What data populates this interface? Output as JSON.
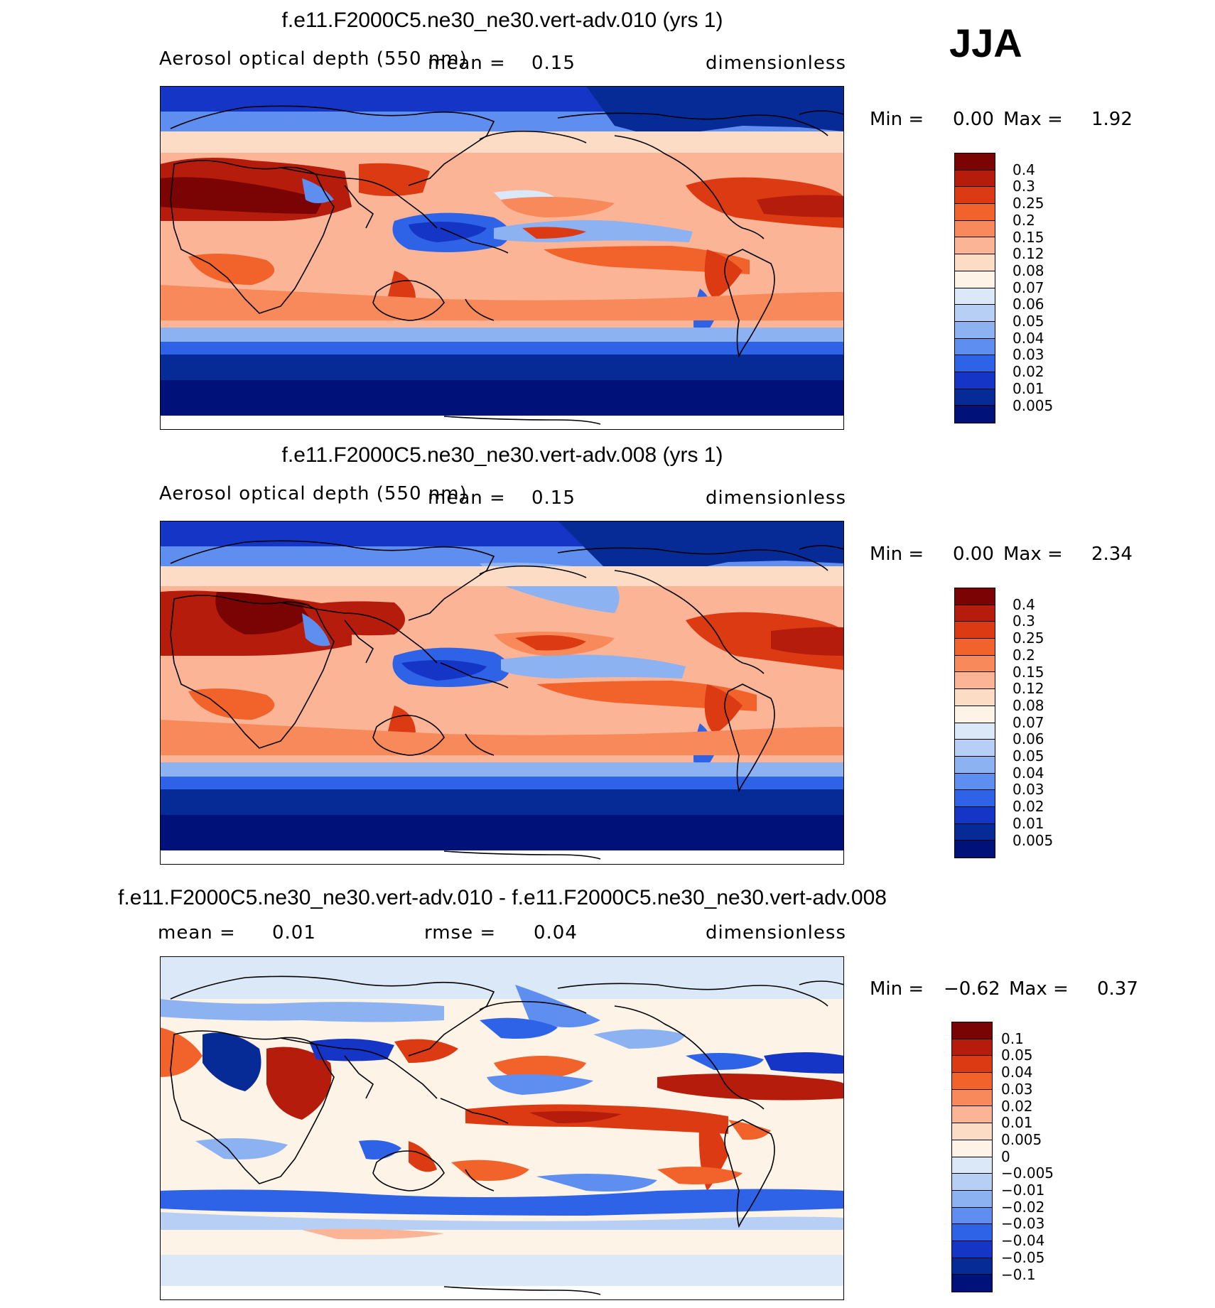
{
  "season": "JJA",
  "panels": [
    {
      "title": "f.e11.F2000C5.ne30_ne30.vert-adv.010 (yrs 1)",
      "left_label": "Aerosol optical depth (550 nm)",
      "mid_label": "mean =",
      "mid_value": "0.15",
      "units": "dimensionless",
      "min_label": "Min =",
      "min_value": "0.00",
      "max_label": "Max =",
      "max_value": "1.92",
      "levels": [
        "0.4",
        "0.3",
        "0.25",
        "0.2",
        "0.15",
        "0.12",
        "0.08",
        "0.07",
        "0.06",
        "0.05",
        "0.04",
        "0.03",
        "0.02",
        "0.01",
        "0.005"
      ]
    },
    {
      "title": "f.e11.F2000C5.ne30_ne30.vert-adv.008 (yrs 1)",
      "left_label": "Aerosol optical depth (550 nm)",
      "mid_label": "mean =",
      "mid_value": "0.15",
      "units": "dimensionless",
      "min_label": "Min =",
      "min_value": "0.00",
      "max_label": "Max =",
      "max_value": "2.34",
      "levels": [
        "0.4",
        "0.3",
        "0.25",
        "0.2",
        "0.15",
        "0.12",
        "0.08",
        "0.07",
        "0.06",
        "0.05",
        "0.04",
        "0.03",
        "0.02",
        "0.01",
        "0.005"
      ]
    },
    {
      "title": "f.e11.F2000C5.ne30_ne30.vert-adv.010 - f.e11.F2000C5.ne30_ne30.vert-adv.008",
      "left_label": "mean =",
      "left_value": "0.01",
      "mid_label": "rmse =",
      "mid_value": "0.04",
      "units": "dimensionless",
      "min_label": "Min =",
      "min_value": "−0.62",
      "max_label": "Max =",
      "max_value": "0.37",
      "levels": [
        "0.1",
        "0.05",
        "0.04",
        "0.03",
        "0.02",
        "0.01",
        "0.005",
        "0",
        "−0.005",
        "−0.01",
        "−0.02",
        "−0.03",
        "−0.04",
        "−0.05",
        "−0.1"
      ]
    }
  ],
  "colors": {
    "abs_scale": [
      "#7a0403",
      "#b51c0b",
      "#dc3a12",
      "#f2632c",
      "#f8895a",
      "#fbb596",
      "#fddcc6",
      "#fdf3e6",
      "#dbe8f8",
      "#b7cff5",
      "#8cb2f2",
      "#5e8ef0",
      "#2e63e7",
      "#1435c6",
      "#062a96",
      "#00127a"
    ],
    "diff_scale": [
      "#7a0403",
      "#b51c0b",
      "#dc3a12",
      "#f2632c",
      "#f8895a",
      "#fbb596",
      "#fddcc6",
      "#fdf3e6",
      "#dbe8f8",
      "#b7cff5",
      "#8cb2f2",
      "#5e8ef0",
      "#2e63e7",
      "#1435c6",
      "#062a96",
      "#00127a"
    ]
  }
}
